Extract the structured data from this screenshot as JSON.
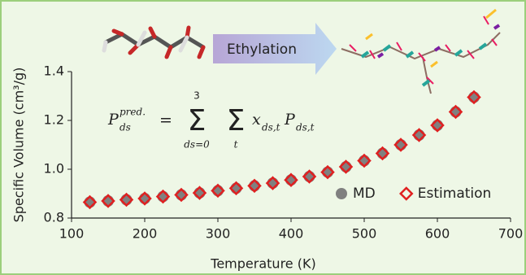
{
  "chart_data": {
    "type": "scatter",
    "xlabel": "Temperature (K)",
    "ylabel": "Specific Volume (cm³/g)",
    "banner": "Ethylation",
    "formula": {
      "P": "P",
      "ds": "ds",
      "pred": "pred.",
      "eq": "=",
      "sigma": "Σ",
      "top": "3",
      "bottom1": "ds=0",
      "bottom2": "t",
      "x": "x",
      "sub1": "ds,t",
      "P2": "P",
      "sub2": "ds,t"
    },
    "x": [
      125,
      150,
      175,
      200,
      225,
      250,
      275,
      300,
      325,
      350,
      375,
      400,
      425,
      450,
      475,
      500,
      525,
      550,
      575,
      600,
      625,
      650
    ],
    "series": [
      {
        "name": "MD",
        "color": "#808080",
        "marker": "circle",
        "values": [
          0.865,
          0.87,
          0.875,
          0.88,
          0.888,
          0.895,
          0.903,
          0.912,
          0.922,
          0.932,
          0.943,
          0.956,
          0.97,
          0.988,
          1.01,
          1.035,
          1.065,
          1.1,
          1.14,
          1.18,
          1.235,
          1.295
        ]
      },
      {
        "name": "Estimation",
        "color": "#e02020",
        "marker": "diamond",
        "values": [
          0.865,
          0.87,
          0.875,
          0.88,
          0.888,
          0.895,
          0.903,
          0.912,
          0.922,
          0.932,
          0.943,
          0.956,
          0.97,
          0.988,
          1.01,
          1.035,
          1.065,
          1.1,
          1.14,
          1.18,
          1.235,
          1.295
        ]
      }
    ],
    "xlim": [
      100,
      700
    ],
    "xticks": [
      100,
      200,
      300,
      400,
      500,
      600,
      700
    ],
    "ylim": [
      0.8,
      1.4
    ],
    "yticks": [
      0.8,
      {
        "value": 1,
        "label": "1.0"
      },
      1.2,
      1.4
    ],
    "legend": "lower right"
  }
}
